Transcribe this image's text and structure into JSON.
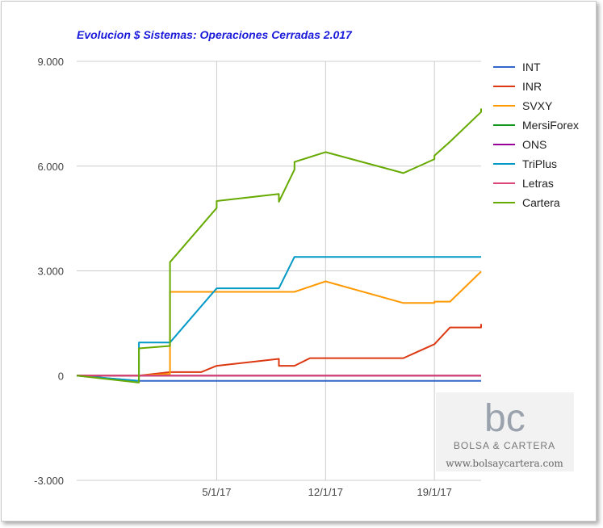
{
  "chart_data": {
    "type": "line",
    "title": "Evolucion $ Sistemas: Operaciones Cerradas 2.017",
    "xlabel": "",
    "ylabel": "",
    "ylim": [
      -3000,
      9000
    ],
    "y_ticks": [
      9000,
      6000,
      3000,
      0,
      -3000
    ],
    "y_tick_labels": [
      "9.000",
      "6.000",
      "3.000",
      "0",
      "-3.000"
    ],
    "x_range": [
      "2016-12-27",
      "2017-01-22"
    ],
    "x_ticks": [
      "2017-01-05",
      "2017-01-12",
      "2017-01-19"
    ],
    "x_tick_labels": [
      "5/1/17",
      "12/1/17",
      "19/1/17"
    ],
    "grid": true,
    "legend_position": "right",
    "series": [
      {
        "name": "INT",
        "color": "#3366cc",
        "points": [
          [
            "2016-12-27",
            0
          ],
          [
            "2016-12-31",
            -150
          ],
          [
            "2017-01-22",
            -150
          ]
        ]
      },
      {
        "name": "INR",
        "color": "#dc3912",
        "points": [
          [
            "2016-12-27",
            0
          ],
          [
            "2016-12-31",
            0
          ],
          [
            "2017-01-02",
            100
          ],
          [
            "2017-01-04",
            100
          ],
          [
            "2017-01-05",
            280
          ],
          [
            "2017-01-09",
            480
          ],
          [
            "2017-01-09",
            280
          ],
          [
            "2017-01-10",
            280
          ],
          [
            "2017-01-11",
            500
          ],
          [
            "2017-01-17",
            500
          ],
          [
            "2017-01-19",
            900
          ],
          [
            "2017-01-20",
            1380
          ],
          [
            "2017-01-22",
            1380
          ],
          [
            "2017-01-22",
            1480
          ]
        ]
      },
      {
        "name": "SVXY",
        "color": "#ff9900",
        "points": [
          [
            "2016-12-27",
            0
          ],
          [
            "2016-12-31",
            0
          ],
          [
            "2017-01-02",
            50
          ],
          [
            "2017-01-02",
            2400
          ],
          [
            "2017-01-10",
            2400
          ],
          [
            "2017-01-12",
            2700
          ],
          [
            "2017-01-17",
            2080
          ],
          [
            "2017-01-19",
            2080
          ],
          [
            "2017-01-19",
            2120
          ],
          [
            "2017-01-20",
            2120
          ],
          [
            "2017-01-22",
            2980
          ]
        ]
      },
      {
        "name": "MersiForex",
        "color": "#109618",
        "points": [
          [
            "2016-12-27",
            0
          ],
          [
            "2017-01-22",
            0
          ]
        ]
      },
      {
        "name": "ONS",
        "color": "#990099",
        "points": [
          [
            "2016-12-27",
            0
          ],
          [
            "2017-01-22",
            0
          ]
        ]
      },
      {
        "name": "TriPlus",
        "color": "#0099c6",
        "points": [
          [
            "2016-12-27",
            0
          ],
          [
            "2016-12-31",
            -150
          ],
          [
            "2016-12-31",
            950
          ],
          [
            "2017-01-02",
            950
          ],
          [
            "2017-01-05",
            2500
          ],
          [
            "2017-01-09",
            2500
          ],
          [
            "2017-01-10",
            3400
          ],
          [
            "2017-01-22",
            3400
          ]
        ]
      },
      {
        "name": "Letras",
        "color": "#dd4477",
        "points": [
          [
            "2016-12-27",
            0
          ],
          [
            "2017-01-22",
            0
          ]
        ]
      },
      {
        "name": "Cartera",
        "color": "#66aa00",
        "points": [
          [
            "2016-12-27",
            0
          ],
          [
            "2016-12-31",
            -200
          ],
          [
            "2016-12-31",
            780
          ],
          [
            "2017-01-02",
            850
          ],
          [
            "2017-01-02",
            3250
          ],
          [
            "2017-01-05",
            4800
          ],
          [
            "2017-01-05",
            5000
          ],
          [
            "2017-01-09",
            5200
          ],
          [
            "2017-01-09",
            4980
          ],
          [
            "2017-01-10",
            5900
          ],
          [
            "2017-01-10",
            6120
          ],
          [
            "2017-01-12",
            6400
          ],
          [
            "2017-01-17",
            5800
          ],
          [
            "2017-01-19",
            6200
          ],
          [
            "2017-01-19",
            6300
          ],
          [
            "2017-01-20",
            6700
          ],
          [
            "2017-01-22",
            7550
          ],
          [
            "2017-01-22",
            7650
          ]
        ]
      }
    ]
  },
  "watermark": {
    "logo": "bc",
    "brand": "BOLSA & CARTERA",
    "url": "www.bolsaycartera.com"
  }
}
